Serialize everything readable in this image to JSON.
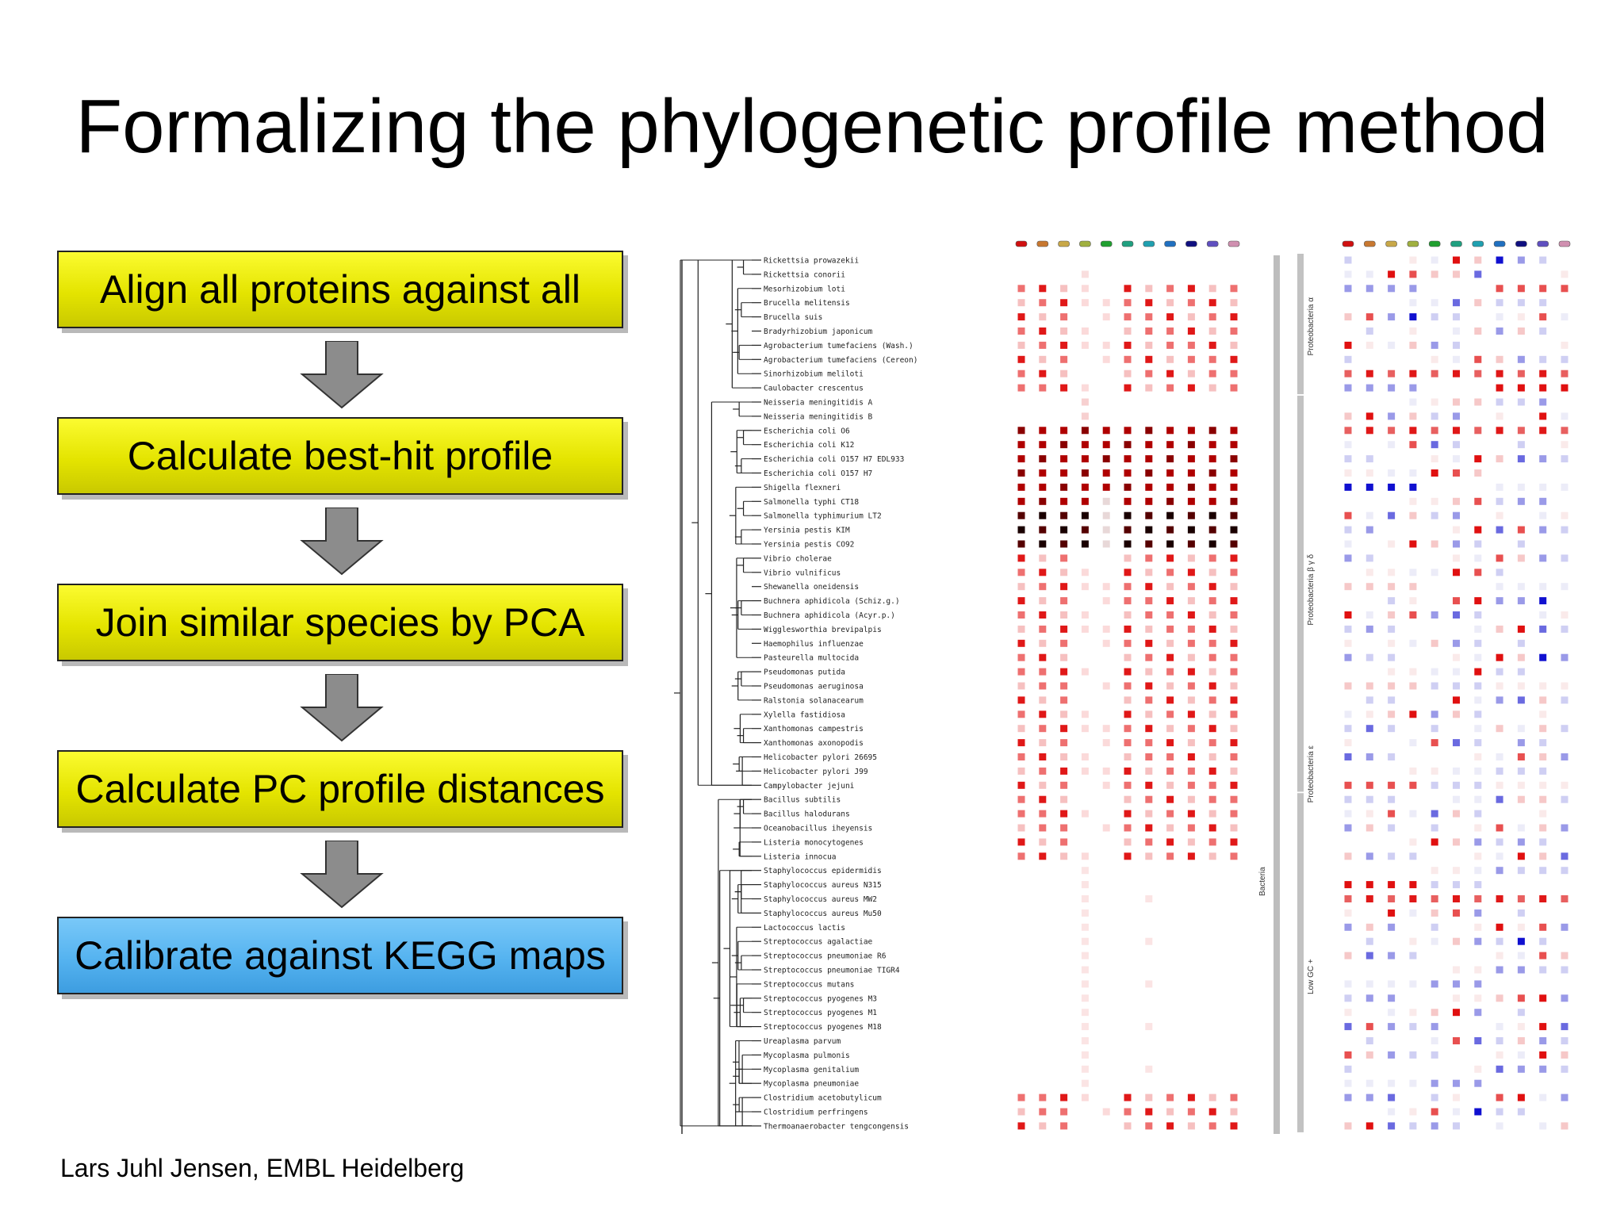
{
  "slide": {
    "title": "Formalizing the phylogenetic profile method",
    "footer": "Lars Juhl Jensen, EMBL Heidelberg"
  },
  "steps": [
    {
      "label": "Align all proteins against all",
      "color": "#e8e800"
    },
    {
      "label": "Calculate best-hit profile",
      "color": "#e8e800"
    },
    {
      "label": "Join similar species by PCA",
      "color": "#e8e800"
    },
    {
      "label": "Calculate PC profile distances",
      "color": "#e8e800"
    },
    {
      "label": "Calibrate against KEGG maps",
      "color": "#55b3f0"
    }
  ],
  "figure": {
    "species": [
      "Rickettsia prowazekii",
      "Rickettsia conorii",
      "Mesorhizobium loti",
      "Brucella melitensis",
      "Brucella suis",
      "Bradyrhizobium japonicum",
      "Agrobacterium tumefaciens (Wash.)",
      "Agrobacterium tumefaciens (Cereon)",
      "Sinorhizobium meliloti",
      "Caulobacter crescentus",
      "Neisseria meningitidis A",
      "Neisseria meningitidis B",
      "Escherichia coli O6",
      "Escherichia coli K12",
      "Escherichia coli O157 H7 EDL933",
      "Escherichia coli O157 H7",
      "Shigella flexneri",
      "Salmonella typhi CT18",
      "Salmonella typhimurium LT2",
      "Yersinia pestis KIM",
      "Yersinia pestis CO92",
      "Vibrio cholerae",
      "Vibrio vulnificus",
      "Shewanella oneidensis",
      "Buchnera aphidicola (Schiz.g.)",
      "Buchnera aphidicola (Acyr.p.)",
      "Wigglesworthia brevipalpis",
      "Haemophilus influenzae",
      "Pasteurella multocida",
      "Pseudomonas putida",
      "Pseudomonas aeruginosa",
      "Ralstonia solanacearum",
      "Xylella fastidiosa",
      "Xanthomonas campestris",
      "Xanthomonas axonopodis",
      "Helicobacter pylori 26695",
      "Helicobacter pylori J99",
      "Campylobacter jejuni",
      "Bacillus subtilis",
      "Bacillus halodurans",
      "Oceanobacillus iheyensis",
      "Listeria monocytogenes",
      "Listeria innocua",
      "Staphylococcus epidermidis",
      "Staphylococcus aureus N315",
      "Staphylococcus aureus MW2",
      "Staphylococcus aureus Mu50",
      "Lactococcus lactis",
      "Streptococcus agalactiae",
      "Streptococcus pneumoniae R6",
      "Streptococcus pneumoniae TIGR4",
      "Streptococcus mutans",
      "Streptococcus pyogenes M3",
      "Streptococcus pyogenes M1",
      "Streptococcus pyogenes M18",
      "Ureaplasma parvum",
      "Mycoplasma pulmonis",
      "Mycoplasma genitalium",
      "Mycoplasma pneumoniae",
      "Clostridium acetobutylicum",
      "Clostridium perfringens",
      "Thermoanaerobacter tengcongensis"
    ],
    "group_labels": [
      "Bacteria",
      "Proteobacteria α",
      "Proteobacteria β γ δ",
      "Proteobacteria ε",
      "Low GC +"
    ],
    "column_colors": [
      "#d01010",
      "#c87830",
      "#c8a848",
      "#a0b040",
      "#20a030",
      "#20a080",
      "#20a0b0",
      "#2070c0",
      "#101080",
      "#6050c0",
      "#d090b0"
    ],
    "heatmap_colors": {
      "high": "#000000",
      "mid": "#e01010",
      "low": "#f7c4c4",
      "blue": "#1010d0",
      "pale_blue": "#c8c8f0"
    }
  }
}
